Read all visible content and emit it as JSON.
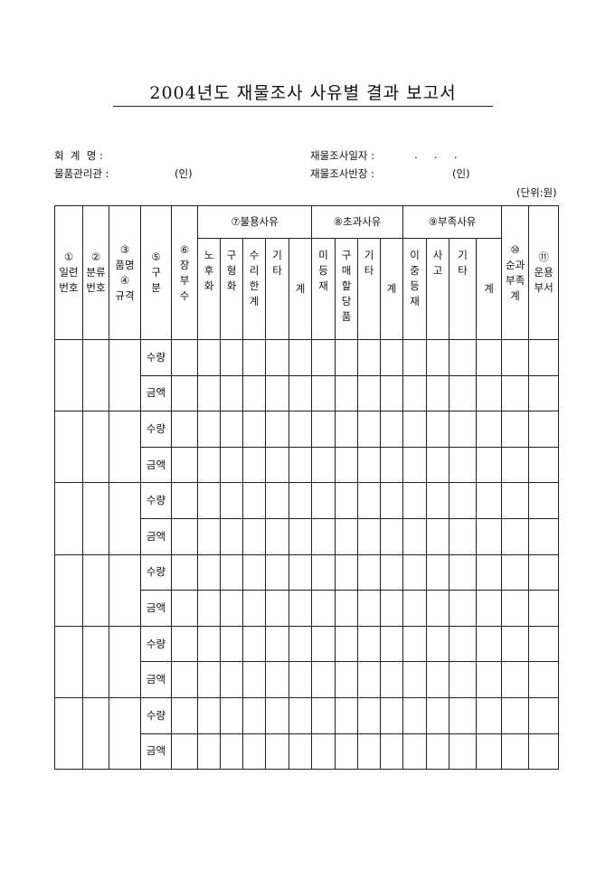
{
  "title": "2004년도 재물조사 사유별 결과 보고서",
  "info": {
    "accounting_name_label": "회  계  명 :",
    "inventory_date_label": "재물조사일자 :",
    "inventory_date_value": ".     .     .",
    "property_officer_label": "물품관리관 :",
    "property_officer_seal": "(인)",
    "inventory_chief_label": "재물조사반장 :",
    "inventory_chief_seal": "(인)",
    "unit": "(단위:원)"
  },
  "table": {
    "headers": {
      "serial_no": "①\n일련\n번호",
      "class_no": "②\n분류\n번호",
      "item_spec": "③\n품명\n④\n규격",
      "category": "⑤\n구\n분",
      "ledger_count": "⑥\n장\n부\n수",
      "disuse_group": "⑦불용사유",
      "disuse_cols": [
        "노\n후\n화",
        "구\n형\n화",
        "수\n리\n한\n계",
        "기\n타",
        "계"
      ],
      "excess_group": "⑧초과사유",
      "excess_cols": [
        "미\n등\n재",
        "구\n매\n할\n당\n품",
        "기\n타",
        "계"
      ],
      "shortage_group": "⑨부족사유",
      "shortage_cols": [
        "이\n중\n등\n재",
        "사\n고",
        "기\n타",
        "계"
      ],
      "net_total": "⑩\n순과\n부족\n계",
      "operating_dept": "⑪\n운용\n부서"
    },
    "row_labels": [
      "수량",
      "금액"
    ],
    "group_count": 6
  }
}
